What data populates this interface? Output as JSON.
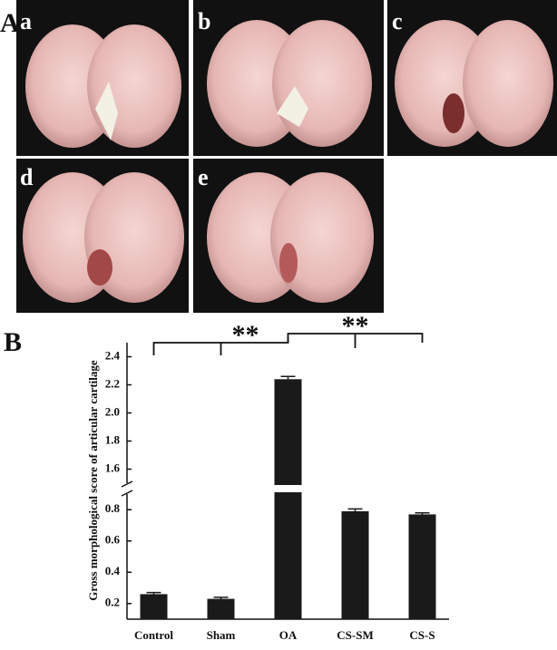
{
  "panel_a": {
    "label": "A",
    "images": [
      {
        "label": "a"
      },
      {
        "label": "b"
      },
      {
        "label": "c"
      },
      {
        "label": "d"
      },
      {
        "label": "e"
      }
    ]
  },
  "chart_data": {
    "type": "bar",
    "panel_label": "B",
    "ylabel": "Gross morphological score of articular cartilage",
    "categories": [
      "Control",
      "Sham",
      "OA",
      "CS-SM",
      "CS-S"
    ],
    "values": [
      0.26,
      0.23,
      2.24,
      0.79,
      0.77
    ],
    "errors": [
      0.01,
      0.01,
      0.02,
      0.015,
      0.01
    ],
    "color": "#1a1a1a",
    "ylim": [
      0.1,
      2.5
    ],
    "ybreak": [
      0.9,
      1.5
    ],
    "yticks": [
      0.2,
      0.4,
      0.6,
      0.8,
      1.6,
      1.8,
      {
        "value": 2,
        "label": "2.0"
      },
      2.2,
      2.4
    ],
    "annotations": [
      {
        "text": "**"
      },
      {
        "text": "**"
      }
    ]
  }
}
